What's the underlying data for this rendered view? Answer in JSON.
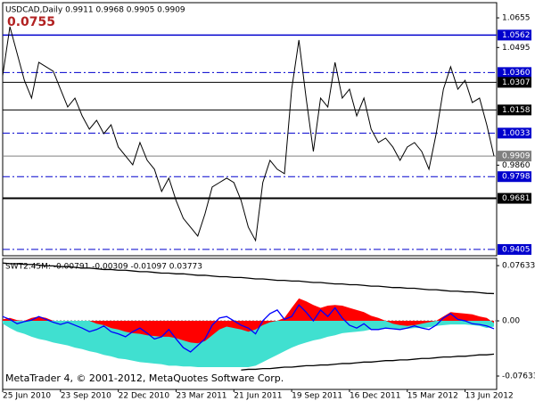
{
  "chart_data": {
    "type": "line",
    "title": "USDCAD,Daily  0.9911 0.9968 0.9905 0.9909",
    "annotation": "0.0755",
    "indicator_title": "SWT2.45M: -0.00791 -0.00309 -0.01097 0.03773",
    "footer": "MetaTrader 4, © 2001-2012, MetaQuotes Software Corp.",
    "categories": [
      "25 Jun 2010",
      null,
      null,
      null,
      null,
      null,
      null,
      null,
      "23 Sep 2010",
      null,
      null,
      null,
      null,
      null,
      null,
      null,
      "22 Dec 2010",
      null,
      null,
      null,
      null,
      null,
      null,
      null,
      "23 Mar 2011",
      null,
      null,
      null,
      null,
      null,
      null,
      null,
      "21 Jun 2011",
      null,
      null,
      null,
      null,
      null,
      null,
      null,
      "19 Sep 2011",
      null,
      null,
      null,
      null,
      null,
      null,
      null,
      "16 Dec 2011",
      null,
      null,
      null,
      null,
      null,
      null,
      null,
      "15 Mar 2012",
      null,
      null,
      null,
      null,
      null,
      null,
      null,
      "13 Jun 2012",
      null,
      null,
      null,
      null
    ],
    "ylim": [
      0.9371,
      1.0737
    ],
    "yticks": [
      1.0655,
      1.0495,
      {
        "value": 0.986,
        "label": "0.9860"
      }
    ],
    "y2lim": [
      -0.0948,
      0.0863
    ],
    "y2ticks": [
      0.07633,
      {
        "value": 0,
        "label": "0.00"
      },
      -0.07633
    ],
    "levels": [
      {
        "value": 1.0562,
        "color": "#0000cd",
        "dash": false,
        "width": 1.5
      },
      {
        "value": 1.036,
        "label": "1.0360",
        "color": "#0000cd",
        "dash": true,
        "width": 1
      },
      {
        "value": 1.0307,
        "color": "#000000",
        "dash": false,
        "width": 1
      },
      {
        "value": 1.0158,
        "color": "#000000",
        "dash": false,
        "width": 1
      },
      {
        "value": 1.0033,
        "color": "#0000cd",
        "dash": true,
        "width": 1
      },
      {
        "value": 0.9909,
        "color": "#808080",
        "dash": false,
        "width": 1
      },
      {
        "value": 0.9798,
        "color": "#0000cd",
        "dash": true,
        "width": 1
      },
      {
        "value": 0.9681,
        "color": "#000000",
        "dash": false,
        "width": 2
      },
      {
        "value": 0.9405,
        "color": "#0000cd",
        "dash": true,
        "width": 1
      }
    ],
    "series": [
      {
        "type": "line",
        "axis": "y",
        "color": "#000000",
        "values": [
          1.0343,
          1.0607,
          1.0463,
          1.0318,
          1.0222,
          1.0415,
          1.0391,
          1.0367,
          1.027,
          1.0174,
          1.0222,
          1.0126,
          1.0054,
          1.0102,
          1.003,
          1.0078,
          0.9958,
          0.991,
          0.9862,
          0.9982,
          0.9886,
          0.9838,
          0.9718,
          0.979,
          0.9669,
          0.9573,
          0.9525,
          0.9477,
          0.9597,
          0.9742,
          0.9766,
          0.979,
          0.9766,
          0.9669,
          0.9525,
          0.9453,
          0.9766,
          0.9886,
          0.9838,
          0.9814,
          1.027,
          1.0535,
          1.0222,
          0.9934,
          1.0222,
          1.0174,
          1.0415,
          1.0222,
          1.027,
          1.0126,
          1.0222,
          1.0054,
          0.9982,
          1.0006,
          0.9958,
          0.9886,
          0.9958,
          0.9982,
          0.9934,
          0.9838,
          1.003,
          1.027,
          1.0391,
          1.027,
          1.0318,
          1.0198,
          1.0222,
          1.0078,
          0.9909
        ]
      },
      {
        "type": "area",
        "axis": "y2",
        "color": "#40e0d0",
        "values": [
          -0.004,
          -0.01,
          -0.015,
          -0.018,
          -0.022,
          -0.025,
          -0.027,
          -0.03,
          -0.032,
          -0.034,
          -0.037,
          -0.039,
          -0.042,
          -0.044,
          -0.047,
          -0.049,
          -0.052,
          -0.053,
          -0.055,
          -0.057,
          -0.058,
          -0.059,
          -0.06,
          -0.062,
          -0.062,
          -0.063,
          -0.063,
          -0.064,
          -0.064,
          -0.064,
          -0.064,
          -0.064,
          -0.064,
          -0.064,
          -0.064,
          -0.062,
          -0.057,
          -0.052,
          -0.047,
          -0.042,
          -0.037,
          -0.033,
          -0.03,
          -0.027,
          -0.025,
          -0.022,
          -0.02,
          -0.017,
          -0.016,
          -0.015,
          -0.014,
          -0.012,
          -0.012,
          -0.011,
          -0.011,
          -0.011,
          -0.011,
          -0.01,
          -0.01,
          -0.009,
          -0.007,
          -0.006,
          -0.005,
          -0.005,
          -0.005,
          -0.006,
          -0.007,
          -0.01,
          -0.00791
        ]
      },
      {
        "type": "area",
        "axis": "y2",
        "color": "#ff0000",
        "values": [
          0.002,
          0.004,
          0.001,
          0,
          0.004,
          0.006,
          0.004,
          0,
          0,
          0,
          0,
          0,
          0,
          -0.004,
          -0.006,
          -0.01,
          -0.012,
          -0.015,
          -0.017,
          -0.018,
          -0.02,
          -0.021,
          -0.022,
          -0.022,
          -0.024,
          -0.027,
          -0.03,
          -0.031,
          -0.028,
          -0.02,
          -0.012,
          -0.008,
          -0.01,
          -0.012,
          -0.015,
          -0.012,
          -0.006,
          -0.002,
          0,
          0.004,
          0.018,
          0.031,
          0.027,
          0.022,
          0.018,
          0.021,
          0.022,
          0.021,
          0.018,
          0.015,
          0.012,
          0.007,
          0.004,
          0,
          -0.004,
          -0.006,
          -0.007,
          -0.006,
          -0.004,
          -0.002,
          0,
          0.006,
          0.012,
          0.011,
          0.01,
          0.009,
          0.006,
          0.004,
          -0.00309
        ]
      },
      {
        "type": "line",
        "axis": "y2",
        "color": "#0000ff",
        "values": [
          0.006,
          0.002,
          -0.004,
          -0.001,
          0.001,
          0.006,
          0.002,
          -0.002,
          -0.005,
          -0.002,
          -0.006,
          -0.01,
          -0.015,
          -0.012,
          -0.007,
          -0.015,
          -0.018,
          -0.022,
          -0.015,
          -0.01,
          -0.017,
          -0.025,
          -0.022,
          -0.012,
          -0.025,
          -0.037,
          -0.043,
          -0.034,
          -0.025,
          -0.006,
          0.004,
          0.006,
          0,
          -0.006,
          -0.01,
          -0.018,
          0,
          0.01,
          0.015,
          0.002,
          0.006,
          0.022,
          0.012,
          0,
          0.015,
          0.006,
          0.018,
          0.004,
          -0.006,
          -0.01,
          -0.004,
          -0.012,
          -0.012,
          -0.01,
          -0.011,
          -0.012,
          -0.01,
          -0.007,
          -0.01,
          -0.012,
          -0.006,
          0.004,
          0.01,
          0.002,
          0,
          -0.004,
          -0.005,
          -0.007,
          -0.01097
        ]
      },
      {
        "type": "line",
        "axis": "y2",
        "color": "#000000",
        "values": [
          0.08,
          0.079,
          0.079,
          0.078,
          0.078,
          0.077,
          0.076,
          0.076,
          0.075,
          0.075,
          0.074,
          0.073,
          0.073,
          0.072,
          0.071,
          0.071,
          0.07,
          0.07,
          0.069,
          0.068,
          0.068,
          0.067,
          0.066,
          0.066,
          0.065,
          0.065,
          0.064,
          0.063,
          0.063,
          0.062,
          0.061,
          0.061,
          0.06,
          0.06,
          0.059,
          0.058,
          0.058,
          0.057,
          0.056,
          0.056,
          0.055,
          0.055,
          0.054,
          0.053,
          0.053,
          0.052,
          0.051,
          0.051,
          0.05,
          0.05,
          0.049,
          0.048,
          0.048,
          0.047,
          0.046,
          0.046,
          0.045,
          0.045,
          0.044,
          0.043,
          0.043,
          0.042,
          0.041,
          0.041,
          0.04,
          0.04,
          0.039,
          0.038,
          0.03773
        ]
      },
      {
        "type": "line",
        "axis": "y2",
        "color": "#000000",
        "values": [
          null,
          null,
          null,
          null,
          null,
          null,
          null,
          null,
          null,
          null,
          null,
          null,
          null,
          null,
          null,
          null,
          null,
          null,
          null,
          null,
          null,
          null,
          null,
          null,
          null,
          null,
          null,
          null,
          null,
          null,
          null,
          null,
          null,
          -0.068,
          -0.067,
          -0.067,
          -0.066,
          -0.066,
          -0.065,
          -0.064,
          -0.064,
          -0.063,
          -0.062,
          -0.062,
          -0.061,
          -0.061,
          -0.06,
          -0.059,
          -0.059,
          -0.058,
          -0.057,
          -0.057,
          -0.056,
          -0.055,
          -0.055,
          -0.054,
          -0.054,
          -0.053,
          -0.052,
          -0.052,
          -0.051,
          -0.05,
          -0.05,
          -0.049,
          -0.049,
          -0.048,
          -0.047,
          -0.047,
          -0.046
        ]
      }
    ]
  }
}
